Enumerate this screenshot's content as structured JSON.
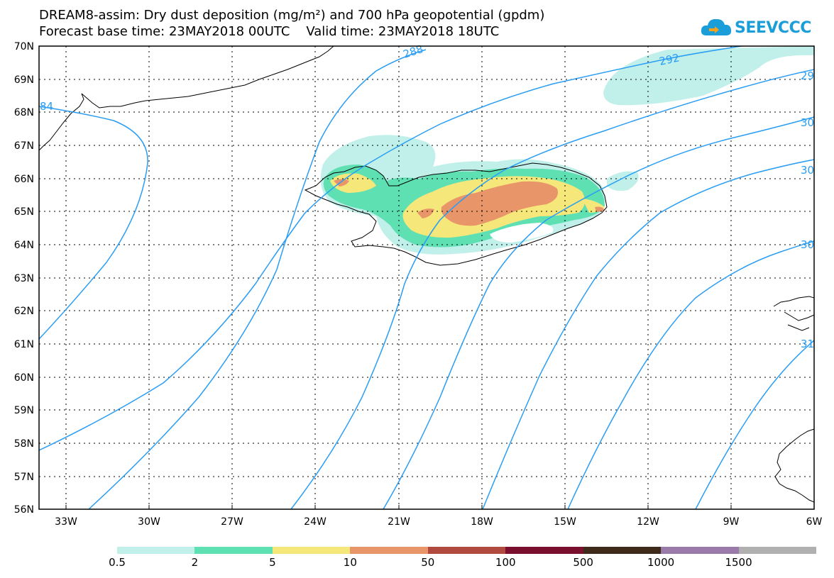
{
  "header": {
    "title_line_1": "DREAM8-assim: Dry dust deposition (mg/m²) and 700 hPa geopotential (gpdm)",
    "title_line_2": "Forecast base time: 23MAY2018 00UTC    Valid time: 23MAY2018 18UTC",
    "logo_text": "SEEVCCC"
  },
  "map": {
    "lat_labels": [
      "70N",
      "69N",
      "68N",
      "67N",
      "66N",
      "65N",
      "64N",
      "63N",
      "62N",
      "61N",
      "60N",
      "59N",
      "58N",
      "57N",
      "56N"
    ],
    "lon_labels": [
      "33W",
      "30W",
      "27W",
      "24W",
      "21W",
      "18W",
      "15W",
      "12W",
      "9W",
      "6W"
    ],
    "contour_labels": [
      "84",
      "288",
      "292",
      "29",
      "30",
      "30",
      "30",
      "31"
    ],
    "colors": {
      "contour": "#2a9df4",
      "coast": "#000000",
      "grid": "#000000"
    }
  },
  "legend": {
    "colors": [
      "#c1f0eb",
      "#5fe0b3",
      "#f5e77a",
      "#e8956a",
      "#b04a3f",
      "#7a0f2e",
      "#3d2a1a",
      "#9a7aa8",
      "#b0b0b0"
    ],
    "labels": [
      "0.5",
      "2",
      "5",
      "10",
      "50",
      "100",
      "500",
      "1000",
      "1500"
    ]
  }
}
